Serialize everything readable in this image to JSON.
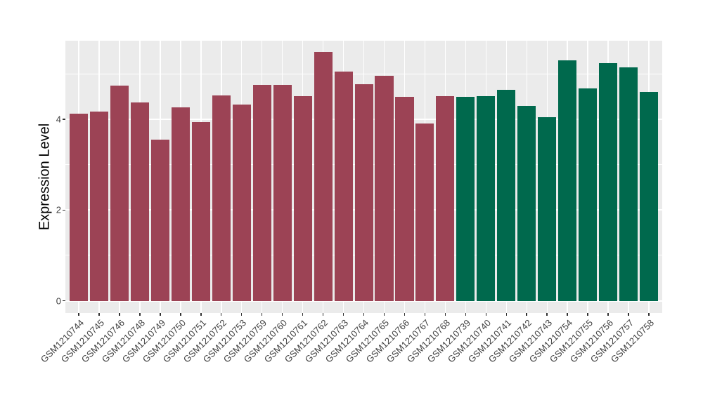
{
  "chart_data": {
    "type": "bar",
    "title": "",
    "xlabel": "",
    "ylabel": "Expression Level",
    "ylim": [
      0,
      5.73
    ],
    "yticks": [
      0,
      2,
      4
    ],
    "yticks_minor": [
      1,
      3,
      5
    ],
    "grid": "white major+minor horizontal gridlines and vertical gridlines at category centers on gray panel",
    "legend": "none",
    "panel_background": "#EBEBEB",
    "gridline_color": "#FFFFFF",
    "tick_color": "#333333",
    "axis_text_color": "#404040",
    "groups": [
      {
        "name": "group-1",
        "color": "#9C4355"
      },
      {
        "name": "group-2",
        "color": "#00694D"
      }
    ],
    "bars": [
      {
        "label": "GSM1210744",
        "value": 4.13,
        "group": 0
      },
      {
        "label": "GSM1210745",
        "value": 4.17,
        "group": 0
      },
      {
        "label": "GSM1210746",
        "value": 4.74,
        "group": 0
      },
      {
        "label": "GSM1210748",
        "value": 4.38,
        "group": 0
      },
      {
        "label": "GSM1210749",
        "value": 3.55,
        "group": 0
      },
      {
        "label": "GSM1210750",
        "value": 4.27,
        "group": 0
      },
      {
        "label": "GSM1210751",
        "value": 3.94,
        "group": 0
      },
      {
        "label": "GSM1210752",
        "value": 4.53,
        "group": 0
      },
      {
        "label": "GSM1210753",
        "value": 4.33,
        "group": 0
      },
      {
        "label": "GSM1210759",
        "value": 4.76,
        "group": 0
      },
      {
        "label": "GSM1210760",
        "value": 4.76,
        "group": 0
      },
      {
        "label": "GSM1210761",
        "value": 4.51,
        "group": 0
      },
      {
        "label": "GSM1210762",
        "value": 5.49,
        "group": 0
      },
      {
        "label": "GSM1210763",
        "value": 5.05,
        "group": 0
      },
      {
        "label": "GSM1210764",
        "value": 4.78,
        "group": 0
      },
      {
        "label": "GSM1210765",
        "value": 4.96,
        "group": 0
      },
      {
        "label": "GSM1210766",
        "value": 4.5,
        "group": 0
      },
      {
        "label": "GSM1210767",
        "value": 3.91,
        "group": 0
      },
      {
        "label": "GSM1210768",
        "value": 4.51,
        "group": 0
      },
      {
        "label": "GSM1210739",
        "value": 4.5,
        "group": 1
      },
      {
        "label": "GSM1210740",
        "value": 4.51,
        "group": 1
      },
      {
        "label": "GSM1210741",
        "value": 4.65,
        "group": 1
      },
      {
        "label": "GSM1210742",
        "value": 4.3,
        "group": 1
      },
      {
        "label": "GSM1210743",
        "value": 4.05,
        "group": 1
      },
      {
        "label": "GSM1210754",
        "value": 5.3,
        "group": 1
      },
      {
        "label": "GSM1210755",
        "value": 4.68,
        "group": 1
      },
      {
        "label": "GSM1210756",
        "value": 5.24,
        "group": 1
      },
      {
        "label": "GSM1210757",
        "value": 5.14,
        "group": 1
      },
      {
        "label": "GSM1210758",
        "value": 4.61,
        "group": 1
      }
    ]
  }
}
